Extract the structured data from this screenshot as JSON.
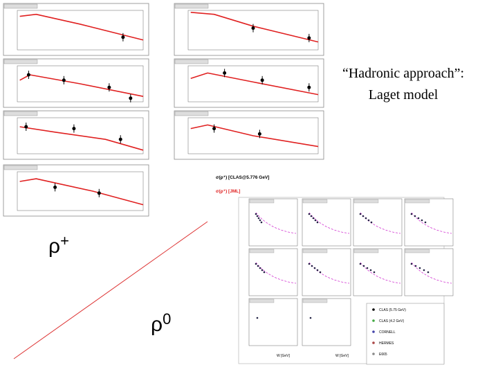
{
  "slide": {
    "model_title": [
      "“Hadronic approach”:",
      "Laget model"
    ],
    "rho_plus": {
      "base": "ρ",
      "sup": "+"
    },
    "rho_zero": {
      "base": "ρ",
      "sup": "0"
    },
    "plot_legend": [
      "σ(ρ⁺) [CLAS@5.776 GeV]",
      "σ(ρ⁺) [JML]"
    ],
    "rho0_legend": [
      "CLAS (5.75 GeV)",
      "CLAS (4.2 GeV)",
      "CORNELL",
      "HERMES",
      "E665"
    ],
    "rho0_xlabel": [
      "W [GeV]",
      "W [GeV]"
    ]
  }
}
